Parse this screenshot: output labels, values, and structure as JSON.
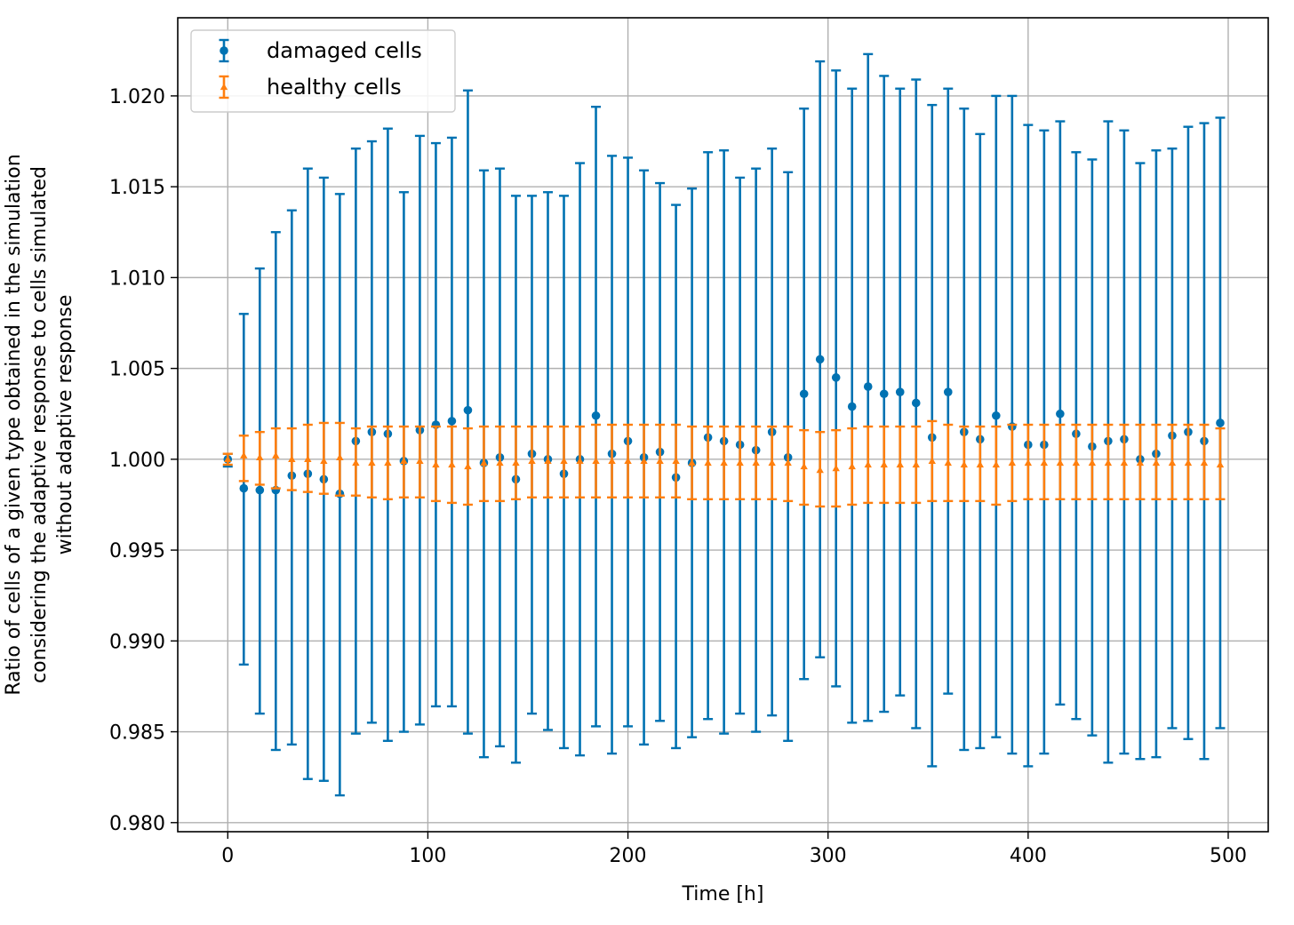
{
  "chart_data": {
    "type": "scatter",
    "title": "",
    "xlabel": "Time [h]",
    "ylabel_lines": [
      "Ratio of cells of a given type obtained in the simulation",
      "considering the adaptive response to cells simulated",
      "without adaptive response"
    ],
    "xlim": [
      -25,
      520
    ],
    "ylim": [
      0.9795,
      1.0243
    ],
    "x_ticks": [
      0,
      100,
      200,
      300,
      400,
      500
    ],
    "x_tick_labels": [
      "0",
      "100",
      "200",
      "300",
      "400",
      "500"
    ],
    "y_ticks": [
      0.98,
      0.985,
      0.99,
      0.995,
      1.0,
      1.005,
      1.01,
      1.015,
      1.02
    ],
    "y_tick_labels": [
      "0.980",
      "0.985",
      "0.990",
      "0.995",
      "1.000",
      "1.005",
      "1.010",
      "1.015",
      "1.020"
    ],
    "grid": true,
    "legend_position": "top-left",
    "x": [
      0,
      8,
      16,
      24,
      32,
      40,
      48,
      56,
      64,
      72,
      80,
      88,
      96,
      104,
      112,
      120,
      128,
      136,
      144,
      152,
      160,
      168,
      176,
      184,
      192,
      200,
      208,
      216,
      224,
      232,
      240,
      248,
      256,
      264,
      272,
      280,
      288,
      296,
      304,
      312,
      320,
      328,
      336,
      344,
      352,
      360,
      368,
      376,
      384,
      392,
      400,
      408,
      416,
      424,
      432,
      440,
      448,
      456,
      464,
      472,
      480,
      488,
      496
    ],
    "series": [
      {
        "name": "damaged cells",
        "color": "#0072b2",
        "marker": "circle",
        "y": [
          1.0,
          0.9984,
          0.9983,
          0.9983,
          0.9991,
          0.9992,
          0.9989,
          0.9981,
          1.001,
          1.0015,
          1.0014,
          0.9999,
          1.0016,
          1.0019,
          1.0021,
          1.0027,
          0.9998,
          1.0001,
          0.9989,
          1.0003,
          1.0,
          0.9992,
          1.0,
          1.0024,
          1.0003,
          1.001,
          1.0001,
          1.0004,
          0.999,
          0.9998,
          1.0012,
          1.001,
          1.0008,
          1.0005,
          1.0015,
          1.0001,
          1.0036,
          1.0055,
          1.0045,
          1.0029,
          1.004,
          1.0036,
          1.0037,
          1.0031,
          1.0012,
          1.0037,
          1.0015,
          1.0011,
          1.0024,
          1.0018,
          1.0008,
          1.0008,
          1.0025,
          1.0014,
          1.0007,
          1.001,
          1.0011,
          1.0,
          1.0003,
          1.0013,
          1.0015,
          1.001,
          1.002
        ],
        "lower": [
          0.9996,
          0.9887,
          0.986,
          0.984,
          0.9843,
          0.9824,
          0.9823,
          0.9815,
          0.9849,
          0.9855,
          0.9845,
          0.985,
          0.9854,
          0.9864,
          0.9864,
          0.9849,
          0.9836,
          0.9842,
          0.9833,
          0.986,
          0.9851,
          0.9841,
          0.9837,
          0.9853,
          0.9838,
          0.9853,
          0.9843,
          0.9856,
          0.9841,
          0.9847,
          0.9857,
          0.9849,
          0.986,
          0.985,
          0.9859,
          0.9845,
          0.9879,
          0.9891,
          0.9875,
          0.9855,
          0.9856,
          0.9861,
          0.987,
          0.9852,
          0.9831,
          0.9871,
          0.984,
          0.9841,
          0.9847,
          0.9838,
          0.9831,
          0.9838,
          0.9865,
          0.9857,
          0.9848,
          0.9833,
          0.9838,
          0.9835,
          0.9836,
          0.9852,
          0.9846,
          0.9835,
          0.9852
        ],
        "upper": [
          1.0003,
          1.008,
          1.0105,
          1.0125,
          1.0137,
          1.016,
          1.0155,
          1.0146,
          1.0171,
          1.0175,
          1.0182,
          1.0147,
          1.0178,
          1.0174,
          1.0177,
          1.0203,
          1.0159,
          1.016,
          1.0145,
          1.0145,
          1.0147,
          1.0145,
          1.0163,
          1.0194,
          1.0167,
          1.0166,
          1.0159,
          1.0152,
          1.014,
          1.0149,
          1.0169,
          1.017,
          1.0155,
          1.016,
          1.0171,
          1.0158,
          1.0193,
          1.0219,
          1.0214,
          1.0204,
          1.0223,
          1.0211,
          1.0204,
          1.0209,
          1.0195,
          1.0204,
          1.0193,
          1.0179,
          1.02,
          1.02,
          1.0184,
          1.0181,
          1.0186,
          1.0169,
          1.0165,
          1.0186,
          1.0181,
          1.0163,
          1.017,
          1.0171,
          1.0183,
          1.0185,
          1.0188
        ]
      },
      {
        "name": "healthy cells",
        "color": "#ff7f0e",
        "marker": "triangle",
        "y": [
          1.0,
          1.0002,
          1.0001,
          1.0002,
          1.0,
          1.0,
          0.9999,
          1.0001,
          0.9998,
          0.9998,
          0.9998,
          0.9999,
          0.9999,
          0.9997,
          0.9997,
          0.9996,
          0.9998,
          0.9998,
          0.9998,
          0.9999,
          0.9999,
          0.9999,
          0.9999,
          0.9999,
          0.9999,
          0.9999,
          0.9999,
          0.9999,
          0.9999,
          0.9998,
          0.9998,
          0.9998,
          0.9998,
          0.9998,
          0.9998,
          0.9998,
          0.9996,
          0.9994,
          0.9995,
          0.9996,
          0.9997,
          0.9997,
          0.9997,
          0.9997,
          0.9999,
          0.9998,
          0.9997,
          0.9997,
          0.9997,
          0.9998,
          0.9998,
          0.9998,
          0.9998,
          0.9998,
          0.9998,
          0.9998,
          0.9998,
          0.9998,
          0.9998,
          0.9998,
          0.9998,
          0.9998,
          0.9997
        ],
        "lower": [
          0.9997,
          0.9988,
          0.9986,
          0.9984,
          0.9983,
          0.9982,
          0.9981,
          0.998,
          0.998,
          0.9979,
          0.9978,
          0.9979,
          0.9979,
          0.9977,
          0.9976,
          0.9975,
          0.9977,
          0.9977,
          0.9978,
          0.9979,
          0.9979,
          0.9979,
          0.9979,
          0.9979,
          0.9979,
          0.9979,
          0.9979,
          0.9979,
          0.9979,
          0.9978,
          0.9978,
          0.9978,
          0.9978,
          0.9978,
          0.9978,
          0.9977,
          0.9975,
          0.9974,
          0.9974,
          0.9975,
          0.9976,
          0.9976,
          0.9976,
          0.9976,
          0.9977,
          0.9977,
          0.9977,
          0.9977,
          0.9975,
          0.9977,
          0.9978,
          0.9978,
          0.9978,
          0.9978,
          0.9978,
          0.9978,
          0.9978,
          0.9978,
          0.9978,
          0.9978,
          0.9978,
          0.9978,
          0.9978
        ],
        "upper": [
          1.0003,
          1.0013,
          1.0015,
          1.0017,
          1.0017,
          1.0019,
          1.002,
          1.002,
          1.0017,
          1.0018,
          1.0018,
          1.0018,
          1.0018,
          1.0018,
          1.0018,
          1.0017,
          1.0018,
          1.0018,
          1.0018,
          1.0018,
          1.0018,
          1.0018,
          1.0018,
          1.0019,
          1.0019,
          1.0019,
          1.0019,
          1.0019,
          1.0019,
          1.0018,
          1.0018,
          1.0018,
          1.0018,
          1.0018,
          1.0018,
          1.0018,
          1.0016,
          1.0015,
          1.0016,
          1.0017,
          1.0018,
          1.0018,
          1.0018,
          1.0018,
          1.0021,
          1.0019,
          1.0018,
          1.0018,
          1.0018,
          1.0019,
          1.0019,
          1.0019,
          1.0019,
          1.0019,
          1.0019,
          1.0019,
          1.0019,
          1.0019,
          1.0019,
          1.0019,
          1.0019,
          1.0019,
          1.0017
        ]
      }
    ]
  }
}
